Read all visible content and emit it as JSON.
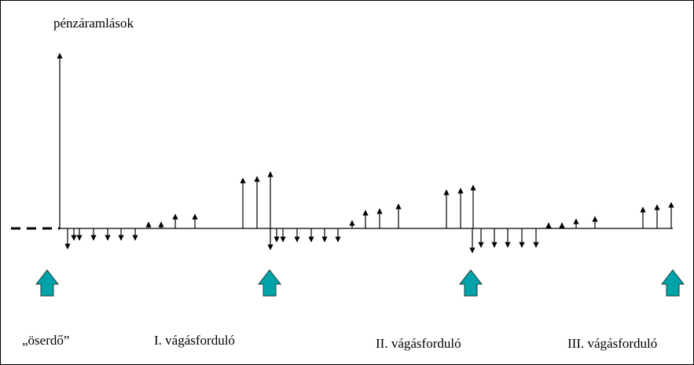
{
  "title": "pénzáramlások",
  "labels": {
    "first": "„öserdő”",
    "rotation_1": "I. vágásforduló",
    "rotation_2": "II. vágásforduló",
    "rotation_3": "III. vágásforduló"
  },
  "colors": {
    "line": "#000000",
    "block_arrow_fill": "#00a3a8",
    "block_arrow_stroke": "#1f3c3c"
  }
}
